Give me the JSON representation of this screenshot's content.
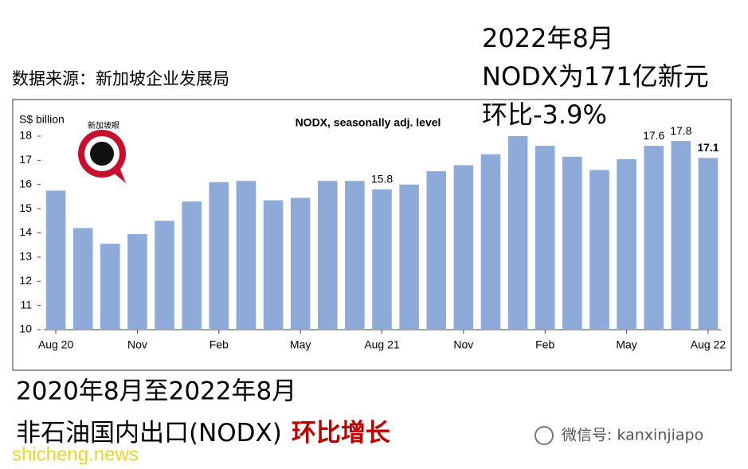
{
  "source": "数据来源：新加坡企业发展局",
  "headline": [
    "2022年8月",
    "NODX为171亿新元",
    "环比-3.9%"
  ],
  "caption": {
    "line1": "2020年8月至2022年8月",
    "line2": "非石油国内出口(NODX)",
    "highlight": "环比增长"
  },
  "logo_text": "新加坡眼",
  "watermark": "shicheng.news",
  "wechat": "微信号: kanxinjiapo",
  "chart_data": {
    "type": "bar",
    "title": "NODX, seasonally adj. level",
    "y_label": "S$ billion",
    "categories": [
      "Aug 20",
      null,
      null,
      "Nov",
      null,
      null,
      "Feb",
      null,
      null,
      "May",
      null,
      null,
      "Aug 21",
      null,
      null,
      "Nov",
      null,
      null,
      "Feb",
      null,
      null,
      "May",
      null,
      null,
      "Aug 22"
    ],
    "values": [
      15.75,
      14.2,
      13.55,
      13.95,
      14.5,
      15.3,
      16.1,
      16.15,
      15.35,
      15.45,
      16.15,
      16.15,
      15.8,
      16.0,
      16.55,
      16.8,
      17.25,
      18.0,
      17.6,
      17.15,
      16.6,
      17.05,
      17.6,
      17.8,
      17.1
    ],
    "value_labels": [
      null,
      null,
      null,
      null,
      null,
      null,
      null,
      null,
      null,
      null,
      null,
      null,
      "15.8",
      null,
      null,
      null,
      null,
      null,
      null,
      null,
      null,
      null,
      "17.6",
      "17.8",
      "17.1"
    ],
    "color": "#8eaad9",
    "ylim": [
      10,
      18
    ],
    "yticks": [
      10,
      11,
      12,
      13,
      14,
      15,
      16,
      17,
      18
    ],
    "grid": false
  }
}
